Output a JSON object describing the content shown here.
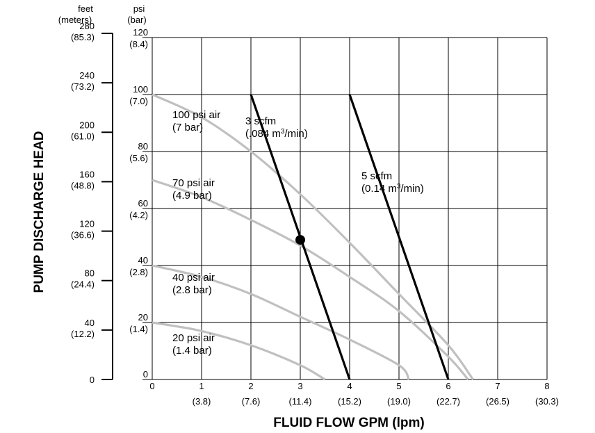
{
  "chart_data": {
    "type": "line",
    "xlabel": "FLUID FLOW GPM (lpm)",
    "ylabel": "PUMP DISCHARGE HEAD",
    "xlim": [
      0,
      8
    ],
    "ylim": [
      0,
      120
    ],
    "grid": true,
    "x_ticks": [
      {
        "value": 0,
        "label": "0",
        "sub": ""
      },
      {
        "value": 1,
        "label": "1",
        "sub": "(3.8)"
      },
      {
        "value": 2,
        "label": "2",
        "sub": "(7.6)"
      },
      {
        "value": 3,
        "label": "3",
        "sub": "(11.4)"
      },
      {
        "value": 4,
        "label": "4",
        "sub": "(15.2)"
      },
      {
        "value": 5,
        "label": "5",
        "sub": "(19.0)"
      },
      {
        "value": 6,
        "label": "6",
        "sub": "(22.7)"
      },
      {
        "value": 7,
        "label": "7",
        "sub": "(26.5)"
      },
      {
        "value": 8,
        "label": "8",
        "sub": "(30.3)"
      }
    ],
    "psi_axis": {
      "header": [
        "psi",
        "(bar)"
      ],
      "ticks": [
        {
          "value": 0,
          "label": "0",
          "sub": ""
        },
        {
          "value": 20,
          "label": "20",
          "sub": "(1.4)"
        },
        {
          "value": 40,
          "label": "40",
          "sub": "(2.8)"
        },
        {
          "value": 60,
          "label": "60",
          "sub": "(4.2)"
        },
        {
          "value": 80,
          "label": "80",
          "sub": "(5.6)"
        },
        {
          "value": 100,
          "label": "100",
          "sub": "(7.0)"
        },
        {
          "value": 120,
          "label": "120",
          "sub": "(8.4)"
        }
      ]
    },
    "feet_axis": {
      "header": [
        "feet",
        "(meters)"
      ],
      "ticks": [
        {
          "value": 0,
          "label": "0",
          "sub": ""
        },
        {
          "value": 40,
          "label": "40",
          "sub": "(12.2)"
        },
        {
          "value": 80,
          "label": "80",
          "sub": "(24.4)"
        },
        {
          "value": 120,
          "label": "120",
          "sub": "(36.6)"
        },
        {
          "value": 160,
          "label": "160",
          "sub": "(48.8)"
        },
        {
          "value": 200,
          "label": "200",
          "sub": "(61.0)"
        },
        {
          "value": 240,
          "label": "240",
          "sub": "(73.2)"
        },
        {
          "value": 280,
          "label": "280",
          "sub": "(85.3)"
        }
      ]
    },
    "air_pressure_curves": [
      {
        "label": [
          "100 psi air",
          "(7 bar)"
        ],
        "color": "#c0c0c0",
        "points": [
          [
            0,
            100
          ],
          [
            1,
            92
          ],
          [
            2,
            80
          ],
          [
            3,
            65
          ],
          [
            4,
            48
          ],
          [
            5,
            30
          ],
          [
            6,
            12
          ],
          [
            6.5,
            0
          ]
        ]
      },
      {
        "label": [
          "70 psi air",
          "(4.9 bar)"
        ],
        "color": "#c0c0c0",
        "points": [
          [
            0,
            70
          ],
          [
            1,
            64
          ],
          [
            2,
            56
          ],
          [
            3,
            47
          ],
          [
            4,
            36
          ],
          [
            5,
            24
          ],
          [
            6,
            8
          ],
          [
            6.4,
            0
          ]
        ]
      },
      {
        "label": [
          "40 psi air",
          "(2.8 bar)"
        ],
        "color": "#c0c0c0",
        "points": [
          [
            0,
            40
          ],
          [
            1,
            36
          ],
          [
            2,
            30
          ],
          [
            3,
            22
          ],
          [
            4,
            14
          ],
          [
            5,
            5
          ],
          [
            5.2,
            0
          ]
        ]
      },
      {
        "label": [
          "20 psi air",
          "(1.4 bar)"
        ],
        "color": "#c0c0c0",
        "points": [
          [
            0,
            20
          ],
          [
            1,
            17
          ],
          [
            2,
            12
          ],
          [
            3,
            5
          ],
          [
            3.5,
            0
          ]
        ]
      }
    ],
    "air_consumption_lines": [
      {
        "label": [
          "3 scfm",
          "(.084 m",
          "3",
          "/min)"
        ],
        "color": "#000000",
        "points": [
          [
            2,
            100
          ],
          [
            4,
            0
          ]
        ]
      },
      {
        "label": [
          "5 scfm",
          "(0.14 m",
          "3",
          "/min)"
        ],
        "color": "#000000",
        "points": [
          [
            4,
            100
          ],
          [
            6,
            0
          ]
        ]
      }
    ],
    "marker": {
      "x": 3,
      "y": 49
    }
  }
}
